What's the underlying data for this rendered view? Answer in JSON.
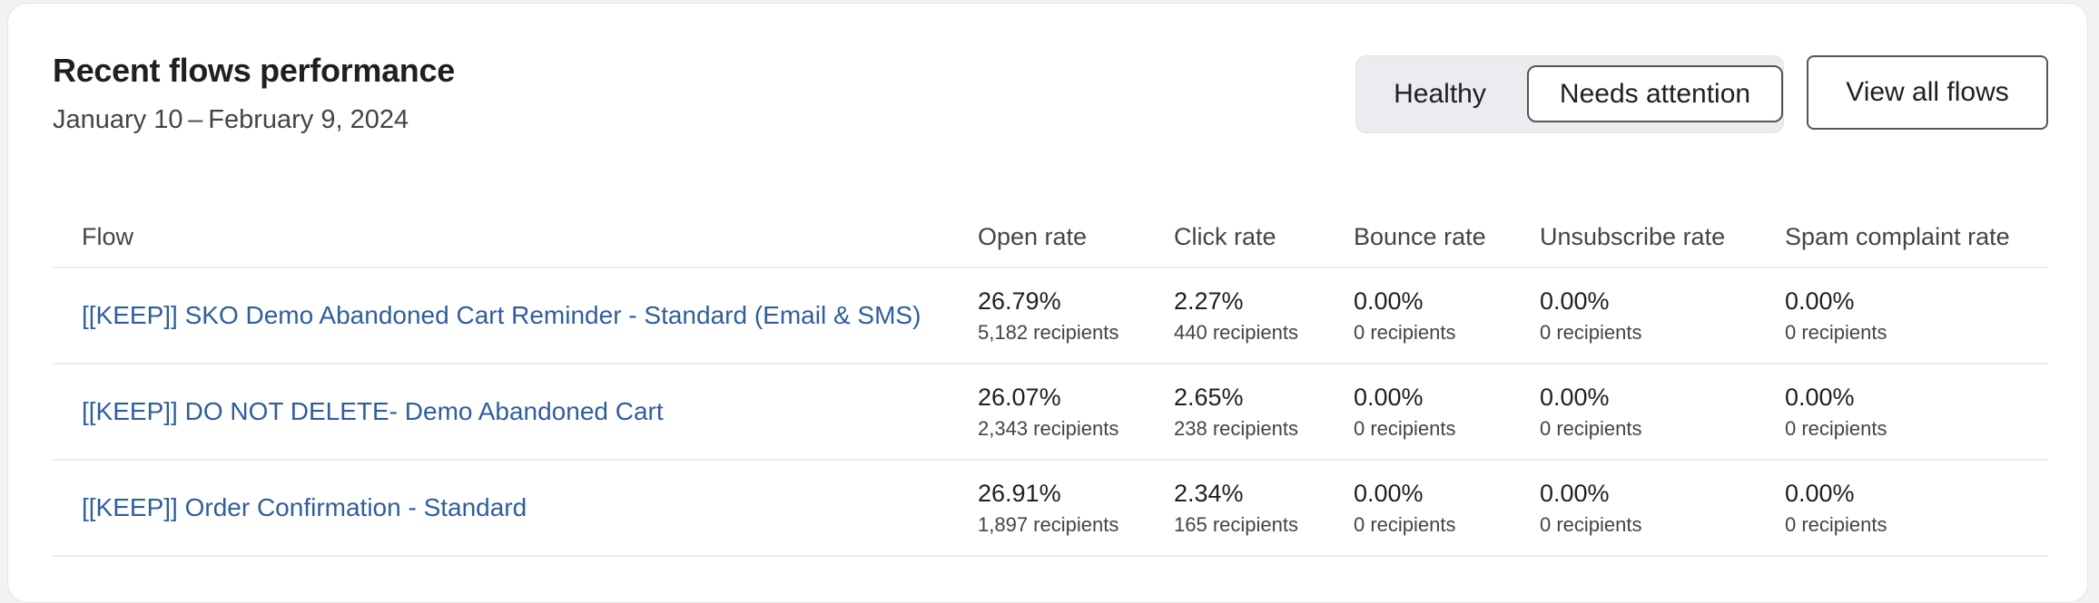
{
  "header": {
    "title": "Recent flows performance",
    "date_range": "January 10 – February 9, 2024"
  },
  "toggle": {
    "options": [
      "Healthy",
      "Needs attention"
    ],
    "selected": "Needs attention"
  },
  "view_all_label": "View all flows",
  "colors": {
    "link": "#2f5e9c",
    "toggle_bg": "#ebecef"
  },
  "table": {
    "columns": [
      "Flow",
      "Open rate",
      "Click rate",
      "Bounce rate",
      "Unsubscribe rate",
      "Spam complaint rate"
    ],
    "rows": [
      {
        "flow": "[[KEEP]] SKO Demo Abandoned Cart Reminder - Standard (Email & SMS)",
        "metrics": [
          {
            "rate": "26.79%",
            "recipients": "5,182 recipients"
          },
          {
            "rate": "2.27%",
            "recipients": "440 recipients"
          },
          {
            "rate": "0.00%",
            "recipients": "0 recipients"
          },
          {
            "rate": "0.00%",
            "recipients": "0 recipients"
          },
          {
            "rate": "0.00%",
            "recipients": "0 recipients"
          }
        ]
      },
      {
        "flow": "[[KEEP]] DO NOT DELETE- Demo Abandoned Cart",
        "metrics": [
          {
            "rate": "26.07%",
            "recipients": "2,343 recipients"
          },
          {
            "rate": "2.65%",
            "recipients": "238 recipients"
          },
          {
            "rate": "0.00%",
            "recipients": "0 recipients"
          },
          {
            "rate": "0.00%",
            "recipients": "0 recipients"
          },
          {
            "rate": "0.00%",
            "recipients": "0 recipients"
          }
        ]
      },
      {
        "flow": "[[KEEP]] Order Confirmation - Standard",
        "metrics": [
          {
            "rate": "26.91%",
            "recipients": "1,897 recipients"
          },
          {
            "rate": "2.34%",
            "recipients": "165 recipients"
          },
          {
            "rate": "0.00%",
            "recipients": "0 recipients"
          },
          {
            "rate": "0.00%",
            "recipients": "0 recipients"
          },
          {
            "rate": "0.00%",
            "recipients": "0 recipients"
          }
        ]
      }
    ]
  }
}
